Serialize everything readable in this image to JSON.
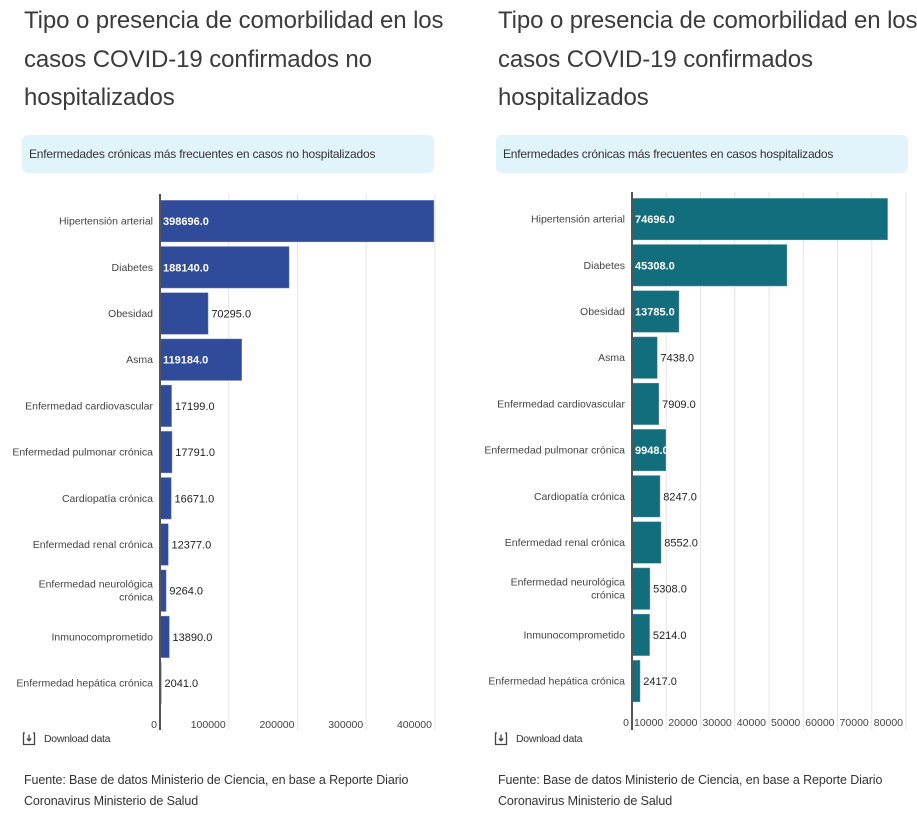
{
  "panels": [
    {
      "title": "Tipo o presencia de comorbilidad en los casos COVID-19 confirmados no hospitalizados",
      "subtitle": "Enfermedades crónicas más frecuentes en casos no hospitalizados",
      "download_label": "Download data",
      "download_icon": "download-icon",
      "source": "Fuente: Base de datos Ministerio de Ciencia, en base a Reporte Diario Coronavirus Ministerio de Salud",
      "bar_color": "#2f4b9a",
      "label_inside_color": "#ffffff",
      "label_outside_color": "#222222"
    },
    {
      "title": "Tipo o presencia de comorbilidad en los casos COVID-19 confirmados hospitalizados",
      "subtitle": "Enfermedades crónicas más frecuentes en casos hospitalizados",
      "download_label": "Download data",
      "download_icon": "download-icon",
      "source": "Fuente: Base de datos Ministerio de Ciencia, en base a Reporte Diario Coronavirus Ministerio de Salud",
      "bar_color": "#126e7c",
      "label_inside_color": "#ffffff",
      "label_outside_color": "#222222"
    }
  ],
  "chart_data": [
    {
      "type": "bar",
      "orientation": "horizontal",
      "title": "Enfermedades crónicas más frecuentes en casos no hospitalizados",
      "categories": [
        "Hipertensión arterial",
        "Diabetes",
        "Obesidad",
        "Asma",
        "Enfermedad cardiovascular",
        "Enfermedad pulmonar crónica",
        "Cardiopatía crónica",
        "Enfermedad renal crónica",
        "Enfermedad neurológica crónica",
        "Inmunocomprometido",
        "Enfermedad hepática crónica"
      ],
      "values": [
        398696.0,
        188140.0,
        70295.0,
        119184.0,
        17199.0,
        17791.0,
        16671.0,
        12377.0,
        9264.0,
        13890.0,
        2041.0
      ],
      "value_labels": [
        "398696.0",
        "188140.0",
        "70295.0",
        "119184.0",
        "17199.0",
        "17791.0",
        "16671.0",
        "12377.0",
        "9264.0",
        "13890.0",
        "2041.0"
      ],
      "xlim": [
        0,
        400000
      ],
      "xticks": [
        0,
        100000,
        200000,
        300000,
        400000
      ],
      "xtick_labels": [
        "0",
        "100000",
        "200000",
        "300000",
        "400000"
      ],
      "xlabel": "",
      "ylabel": "",
      "grid": true,
      "legend": "none"
    },
    {
      "type": "bar",
      "orientation": "horizontal",
      "title": "Enfermedades crónicas más frecuentes en casos hospitalizados",
      "categories": [
        "Hipertensión arterial",
        "Diabetes",
        "Obesidad",
        "Asma",
        "Enfermedad cardiovascular",
        "Enfermedad pulmonar crónica",
        "Cardiopatía crónica",
        "Enfermedad renal crónica",
        "Enfermedad neurológica crónica",
        "Inmunocomprometido",
        "Enfermedad hepática crónica"
      ],
      "values": [
        74696.0,
        45308.0,
        13785.0,
        7438.0,
        7909.0,
        9948.0,
        8247.0,
        8552.0,
        5308.0,
        5214.0,
        2417.0
      ],
      "value_labels": [
        "74696.0",
        "45308.0",
        "13785.0",
        "7438.0",
        "7909.0",
        "9948.0",
        "8247.0",
        "8552.0",
        "5308.0",
        "5214.0",
        "2417.0"
      ],
      "label_inside": [
        true,
        true,
        true,
        false,
        false,
        true,
        false,
        false,
        false,
        false,
        false
      ],
      "xlim": [
        0,
        80000
      ],
      "xticks": [
        0,
        10000,
        20000,
        30000,
        40000,
        50000,
        60000,
        70000,
        80000
      ],
      "xtick_labels": [
        "0",
        "10000",
        "20000",
        "30000",
        "40000",
        "50000",
        "60000",
        "70000",
        "80000"
      ],
      "xlabel": "",
      "ylabel": "",
      "grid": true,
      "legend": "none"
    }
  ]
}
